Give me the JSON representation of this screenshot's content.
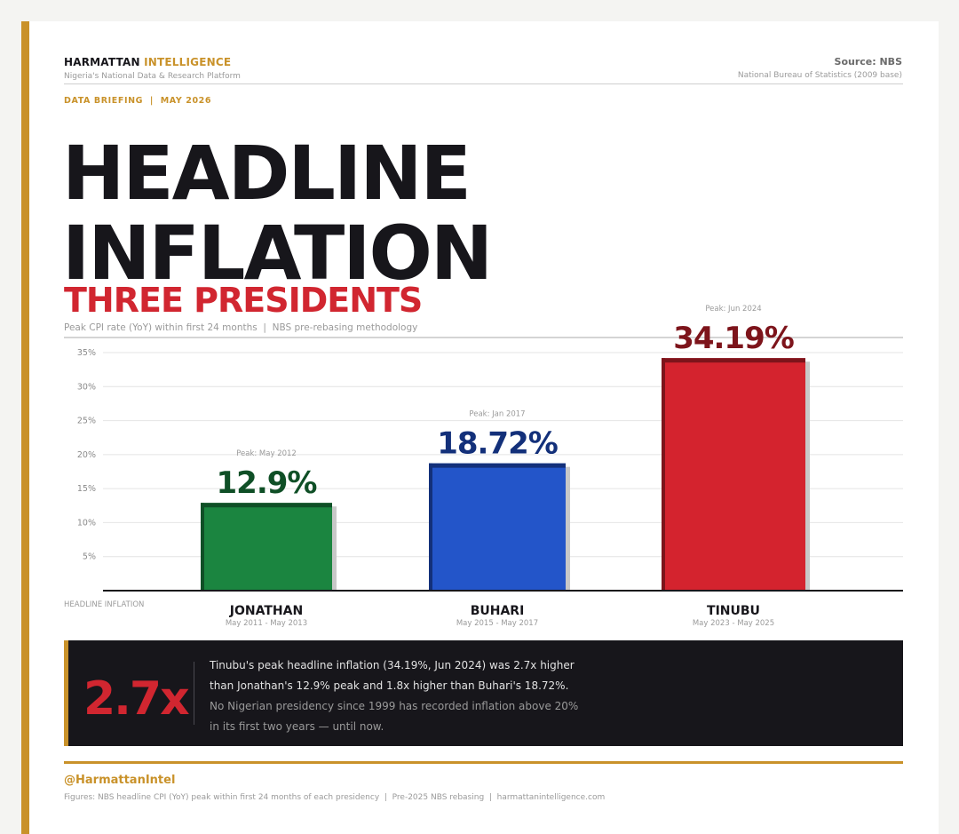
{
  "header": {
    "brand_part1": "HARMATTAN",
    "brand_part2": "INTELLIGENCE",
    "tagline": "Nigeria's National Data & Research Platform",
    "source": "Source: NBS",
    "source_sub": "National Bureau of Statistics (2009 base)",
    "briefing": "DATA BRIEFING  |  MAY 2026"
  },
  "headline": {
    "line1": "HEADLINE",
    "line2": "INFLATION",
    "subhead": "THREE PRESIDENTS",
    "chart_subtitle": "Peak CPI rate (YoY) within first 24 months  |  NBS pre-rebasing methodology"
  },
  "chart_data": {
    "type": "bar",
    "title": "HEADLINE INFLATION",
    "subtitle": "THREE PRESIDENTS",
    "xlabel": "",
    "ylabel": "",
    "ylim": [
      0,
      35
    ],
    "y_ticks": [
      "5%",
      "10%",
      "15%",
      "20%",
      "25%",
      "30%",
      "35%"
    ],
    "y_tick_values": [
      5,
      10,
      15,
      20,
      25,
      30,
      35
    ],
    "grid": true,
    "categories": [
      "JONATHAN",
      "BUHARI",
      "TINUBU"
    ],
    "periods": [
      "May 2011 - May 2013",
      "May 2015 - May 2017",
      "May 2023 - May 2025"
    ],
    "values": [
      12.9,
      18.72,
      34.19
    ],
    "value_labels": [
      "12.9%",
      "18.72%",
      "34.19%"
    ],
    "peak_labels": [
      "Peak: May 2012",
      "Peak: Jan 2017",
      "Peak: Jun 2024"
    ],
    "bar_colors": [
      "#1b8540",
      "#2355c9",
      "#d4232e"
    ],
    "bar_edge_colors": [
      "#0f4f26",
      "#13307a",
      "#7d141b"
    ],
    "label_colors": [
      "#0f4f26",
      "#13307a",
      "#7d141b"
    ],
    "axis_caption": "HEADLINE INFLATION"
  },
  "callout": {
    "big": "2.7x",
    "line1": "Tinubu's peak headline inflation (34.19%, Jun 2024) was 2.7x higher",
    "line2": "than Jonathan's 12.9% peak and 1.8x higher than Buhari's 18.72%.",
    "line3": "No Nigerian presidency since 1999 has recorded inflation above 20%",
    "line4": "in its first two years — until now."
  },
  "footer": {
    "handle": "@HarmattanIntel",
    "note": "Figures: NBS headline CPI (YoY) peak within first 24 months of each presidency  |  Pre-2025 NBS rebasing  |  harmattanintelligence.com"
  },
  "colors": {
    "accent_gold": "#c9922a",
    "headline_red": "#d12630",
    "ink": "#17161b"
  }
}
